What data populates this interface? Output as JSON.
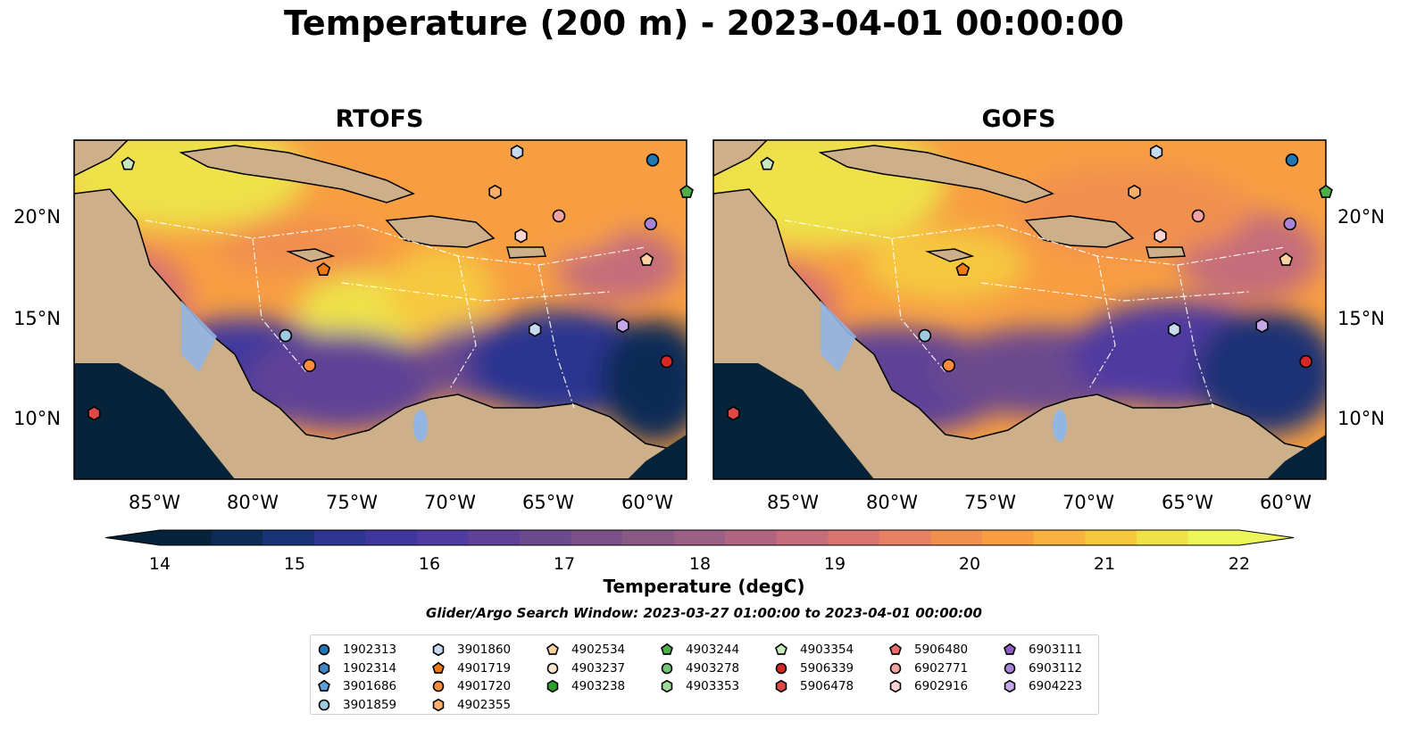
{
  "title": "Temperature (200 m) - 2023-04-01 00:00:00",
  "panels": [
    {
      "title": "RTOFS"
    },
    {
      "title": "GOFS"
    }
  ],
  "axes": {
    "lon_ticks": [
      "85°W",
      "80°W",
      "75°W",
      "70°W",
      "65°W",
      "60°W"
    ],
    "lat_ticks": [
      "20°N",
      "15°N",
      "10°N"
    ],
    "lon_range": [
      -89,
      -58.3
    ],
    "lat_range": [
      7,
      24
    ]
  },
  "colorbar": {
    "label": "Temperature (degC)",
    "ticks": [
      "14",
      "15",
      "16",
      "17",
      "18",
      "19",
      "20",
      "21",
      "22"
    ],
    "range": [
      14,
      22
    ],
    "step": 0.5,
    "extend": "both",
    "colors": [
      "#06233a",
      "#0c2c56",
      "#1a3375",
      "#2c3590",
      "#3f379e",
      "#503ba0",
      "#5f4296",
      "#6c4a8e",
      "#7b5288",
      "#8a5a86",
      "#9b6084",
      "#b06681",
      "#c56d7a",
      "#d97570",
      "#e88063",
      "#f18f50",
      "#f79e42",
      "#f9b23f",
      "#f6c83f",
      "#eee14a",
      "#ecf65a"
    ],
    "under_color": "#06233a",
    "over_color": "#ecf65a"
  },
  "search_window": "Glider/Argo Search Window: 2023-03-27 01:00:00 to 2023-04-01 00:00:00",
  "legend": {
    "columns": [
      [
        {
          "id": "1902313",
          "shape": "circle",
          "color": "#1f77b4"
        },
        {
          "id": "1902314",
          "shape": "hexagon",
          "color": "#3e88c8"
        },
        {
          "id": "3901686",
          "shape": "pentagon",
          "color": "#5aa0da"
        },
        {
          "id": "3901859",
          "shape": "circle",
          "color": "#9ecae1"
        }
      ],
      [
        {
          "id": "3901860",
          "shape": "hexagon",
          "color": "#c6dbef"
        },
        {
          "id": "4901719",
          "shape": "pentagon",
          "color": "#f07b12"
        },
        {
          "id": "4901720",
          "shape": "circle",
          "color": "#fd8d3c"
        },
        {
          "id": "4902355",
          "shape": "hexagon",
          "color": "#fdae6b"
        }
      ],
      [
        {
          "id": "4902534",
          "shape": "pentagon",
          "color": "#fdd0a2"
        },
        {
          "id": "4903237",
          "shape": "circle",
          "color": "#fee6ce"
        },
        {
          "id": "4903238",
          "shape": "hexagon",
          "color": "#2ca02c"
        }
      ],
      [
        {
          "id": "4903244",
          "shape": "pentagon",
          "color": "#4daf4a"
        },
        {
          "id": "4903278",
          "shape": "circle",
          "color": "#74c476"
        },
        {
          "id": "4903353",
          "shape": "hexagon",
          "color": "#a1d99b"
        }
      ],
      [
        {
          "id": "4903354",
          "shape": "pentagon",
          "color": "#c7e9c0"
        },
        {
          "id": "5906339",
          "shape": "circle",
          "color": "#d62728"
        },
        {
          "id": "5906478",
          "shape": "hexagon",
          "color": "#e04848"
        }
      ],
      [
        {
          "id": "5906480",
          "shape": "pentagon",
          "color": "#ef6a6a"
        },
        {
          "id": "6902771",
          "shape": "circle",
          "color": "#f4a3a3"
        },
        {
          "id": "6902916",
          "shape": "hexagon",
          "color": "#fbd3d3"
        }
      ],
      [
        {
          "id": "6903111",
          "shape": "pentagon",
          "color": "#8e5fc2"
        },
        {
          "id": "6903112",
          "shape": "circle",
          "color": "#a984d6"
        },
        {
          "id": "6904223",
          "shape": "hexagon",
          "color": "#c5a8e8"
        }
      ]
    ]
  },
  "floats_on_map": [
    {
      "id": "4903354",
      "lon": -86.3,
      "lat": 22.8
    },
    {
      "id": "1902313",
      "lon": -60.0,
      "lat": 23.0
    },
    {
      "id": "3901860",
      "lon": -66.8,
      "lat": 23.4
    },
    {
      "id": "4902355",
      "lon": -67.9,
      "lat": 21.4
    },
    {
      "id": "4903244",
      "lon": -58.3,
      "lat": 21.4
    },
    {
      "id": "6902771",
      "lon": -64.7,
      "lat": 20.2
    },
    {
      "id": "6903112",
      "lon": -60.1,
      "lat": 19.8
    },
    {
      "id": "6902916",
      "lon": -66.6,
      "lat": 19.2
    },
    {
      "id": "4902534",
      "lon": -60.3,
      "lat": 18.0
    },
    {
      "id": "4901719",
      "lon": -76.5,
      "lat": 17.5
    },
    {
      "id": "6904223",
      "lon": -61.5,
      "lat": 14.7
    },
    {
      "id": "3901860",
      "lon": -65.9,
      "lat": 14.5
    },
    {
      "id": "3901859",
      "lon": -78.4,
      "lat": 14.2
    },
    {
      "id": "4901720",
      "lon": -77.2,
      "lat": 12.7
    },
    {
      "id": "5906339",
      "lon": -59.3,
      "lat": 12.9
    },
    {
      "id": "5906478",
      "lon": -88.0,
      "lat": 10.3
    }
  ]
}
